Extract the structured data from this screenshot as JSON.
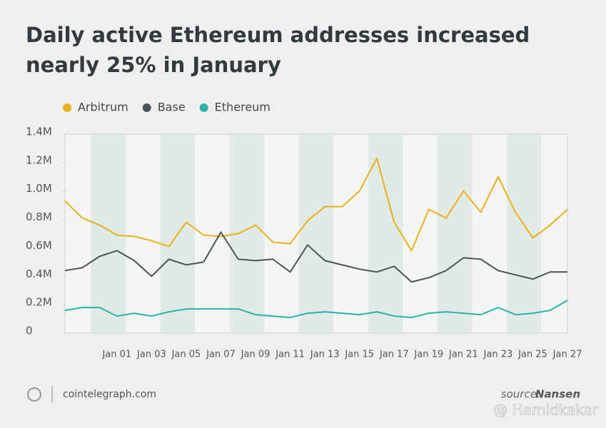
{
  "chart_data": {
    "type": "line",
    "title": "Daily active Ethereum addresses increased nearly 25% in January",
    "categories": [
      null,
      null,
      null,
      "Jan 01",
      null,
      "Jan 03",
      null,
      "Jan 05",
      null,
      "Jan 07",
      null,
      "Jan 09",
      null,
      "Jan 11",
      null,
      "Jan 13",
      null,
      "Jan 15",
      null,
      "Jan 17",
      null,
      "Jan 19",
      null,
      "Jan 21",
      null,
      "Jan 23",
      null,
      "Jan 25",
      null,
      "Jan 27"
    ],
    "series": [
      {
        "name": "Arbitrum",
        "color": "#e8b11c",
        "values": [
          930000,
          810000,
          760000,
          690000,
          680000,
          650000,
          610000,
          780000,
          690000,
          680000,
          700000,
          760000,
          640000,
          630000,
          790000,
          890000,
          890000,
          1000000,
          1230000,
          780000,
          580000,
          870000,
          810000,
          1000000,
          850000,
          1100000,
          850000,
          670000,
          760000,
          870000
        ]
      },
      {
        "name": "Base",
        "color": "#4b5458",
        "values": [
          440000,
          460000,
          540000,
          580000,
          510000,
          400000,
          520000,
          480000,
          500000,
          710000,
          520000,
          510000,
          520000,
          430000,
          620000,
          510000,
          480000,
          450000,
          430000,
          470000,
          360000,
          390000,
          440000,
          530000,
          520000,
          440000,
          410000,
          380000,
          430000,
          430000
        ]
      },
      {
        "name": "Ethereum",
        "color": "#2bb3a8",
        "values": [
          160000,
          180000,
          180000,
          120000,
          140000,
          120000,
          150000,
          170000,
          170000,
          170000,
          170000,
          130000,
          120000,
          110000,
          140000,
          150000,
          140000,
          130000,
          150000,
          120000,
          110000,
          140000,
          150000,
          140000,
          130000,
          180000,
          130000,
          140000,
          160000,
          230000
        ]
      }
    ],
    "ylim": [
      0,
      1400000
    ],
    "yticks": [
      0,
      {
        "value": 200000,
        "label": "0.2M"
      },
      {
        "value": 400000,
        "label": "0.4M"
      },
      {
        "value": 600000,
        "label": "0.6M"
      },
      {
        "value": 800000,
        "label": "0.8M"
      },
      {
        "value": 1000000,
        "label": "1.0M"
      },
      {
        "value": 1200000,
        "label": "1.2M"
      },
      {
        "value": 1400000,
        "label": "1.4M"
      }
    ],
    "legend": "top-left",
    "site": "cointelegraph.com",
    "source_label": "source:",
    "source": "Nansen",
    "watermark": "@ Hamidkakar"
  }
}
